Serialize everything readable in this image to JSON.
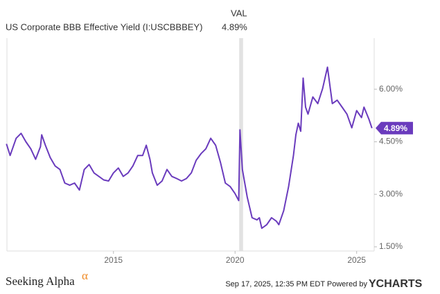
{
  "chart_data": {
    "type": "line",
    "title": "US Corporate BBB Effective Yield (I:USCBBBEY)",
    "legend": {
      "header": "VAL",
      "value": "4.89%"
    },
    "series": [
      {
        "name": "US Corporate BBB Effective Yield",
        "color": "#6a3bbd",
        "last_label": "4.89%",
        "x": [
          2010.6,
          2010.75,
          2011.0,
          2011.2,
          2011.4,
          2011.6,
          2011.8,
          2012.0,
          2012.05,
          2012.2,
          2012.4,
          2012.6,
          2012.8,
          2013.0,
          2013.2,
          2013.4,
          2013.6,
          2013.8,
          2014.0,
          2014.2,
          2014.4,
          2014.6,
          2014.8,
          2015.0,
          2015.2,
          2015.4,
          2015.6,
          2015.8,
          2016.0,
          2016.2,
          2016.35,
          2016.5,
          2016.6,
          2016.8,
          2017.0,
          2017.2,
          2017.4,
          2017.6,
          2017.8,
          2018.0,
          2018.2,
          2018.4,
          2018.6,
          2018.8,
          2019.0,
          2019.2,
          2019.4,
          2019.6,
          2019.8,
          2020.0,
          2020.15,
          2020.2,
          2020.3,
          2020.5,
          2020.7,
          2020.9,
          2021.0,
          2021.1,
          2021.3,
          2021.5,
          2021.7,
          2021.8,
          2022.0,
          2022.2,
          2022.4,
          2022.5,
          2022.6,
          2022.7,
          2022.8,
          2022.9,
          2023.0,
          2023.2,
          2023.4,
          2023.6,
          2023.8,
          2024.0,
          2024.2,
          2024.4,
          2024.6,
          2024.8,
          2025.0,
          2025.2,
          2025.3,
          2025.5,
          2025.63
        ],
        "values": [
          4.44,
          4.11,
          4.6,
          4.74,
          4.5,
          4.3,
          4.0,
          4.36,
          4.7,
          4.4,
          4.05,
          3.81,
          3.71,
          3.32,
          3.26,
          3.32,
          3.12,
          3.71,
          3.85,
          3.61,
          3.51,
          3.41,
          3.38,
          3.61,
          3.75,
          3.51,
          3.61,
          3.81,
          4.11,
          4.11,
          4.4,
          4.0,
          3.61,
          3.26,
          3.38,
          3.71,
          3.51,
          3.45,
          3.38,
          3.45,
          3.61,
          3.97,
          4.16,
          4.3,
          4.6,
          4.4,
          3.91,
          3.32,
          3.22,
          3.02,
          2.82,
          4.84,
          3.71,
          2.92,
          2.33,
          2.27,
          2.33,
          2.03,
          2.13,
          2.33,
          2.23,
          2.13,
          2.53,
          3.22,
          4.11,
          4.7,
          5.03,
          4.8,
          6.32,
          5.49,
          5.29,
          5.78,
          5.59,
          6.02,
          6.63,
          5.59,
          5.69,
          5.49,
          5.29,
          4.9,
          5.39,
          5.19,
          5.49,
          5.15,
          4.89
        ]
      }
    ],
    "shaded_region": [
      2020.17,
      2020.33
    ],
    "xlim": [
      2010.62,
      2025.72
    ],
    "xticks": [
      2015,
      2020,
      2025
    ],
    "ylim": [
      1.38,
      7.46
    ],
    "yticks": [
      {
        "value": 1.5,
        "label": "1.50%"
      },
      {
        "value": 3,
        "label": "3.00%"
      },
      {
        "value": 4.5,
        "label": "4.50%"
      },
      {
        "value": 6,
        "label": "6.00%"
      }
    ],
    "grid": false
  },
  "footer": {
    "brand": "Seeking Alpha",
    "brand_symbol": "α",
    "timestamp": "Sep 17, 2025, 12:35 PM EDT Powered by",
    "provider": "YCHARTS"
  }
}
